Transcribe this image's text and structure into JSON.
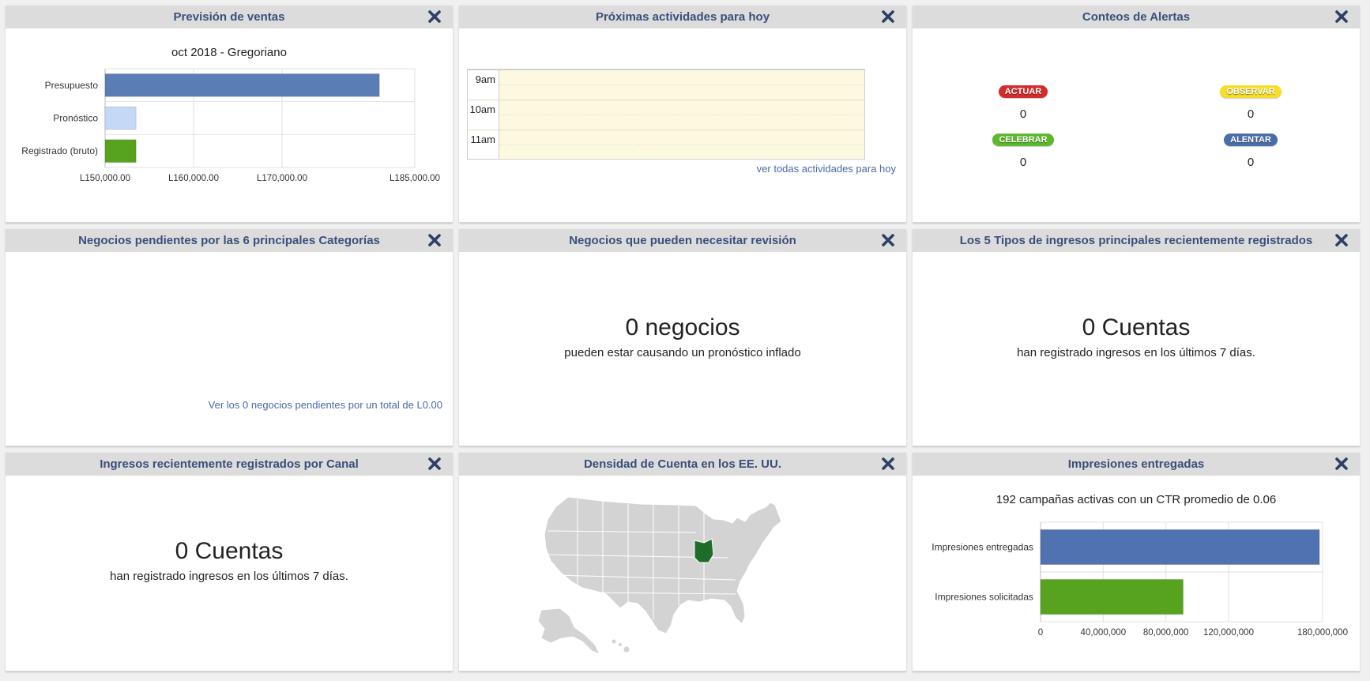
{
  "dashlets": {
    "sales_forecast": {
      "title": "Previsión de ventas"
    },
    "activities": {
      "title": "Próximas actividades para hoy",
      "hours": [
        "9am",
        "10am",
        "11am"
      ],
      "view_all": "ver todas actividades para hoy"
    },
    "alerts": {
      "title": "Conteos de Alertas",
      "items": [
        {
          "label": "ACTUAR",
          "count": "0",
          "color": "#d42c2c"
        },
        {
          "label": "OBSERVAR",
          "count": "0",
          "color": "#f5dd2a"
        },
        {
          "label": "CELEBRAR",
          "count": "0",
          "color": "#5cb82c"
        },
        {
          "label": "ALENTAR",
          "count": "0",
          "color": "#4a6ea8"
        }
      ]
    },
    "pending_deals": {
      "title": "Negocios pendientes por las 6 principales Categorías",
      "link": "Ver los 0 negocios pendientes por un total de L0.00"
    },
    "review_deals": {
      "title": "Negocios que pueden necesitar revisión",
      "count": "0 negocios",
      "subtitle": "pueden estar causando un pronóstico inflado"
    },
    "top_revenue_types": {
      "title": "Los 5 Tipos de ingresos principales recientemente registrados",
      "count": "0 Cuentas",
      "subtitle": "han registrado ingresos en los últimos 7 días."
    },
    "revenue_by_channel": {
      "title": "Ingresos recientemente registrados por Canal",
      "count": "0 Cuentas",
      "subtitle": "han registrado ingresos en los últimos 7 días."
    },
    "account_density": {
      "title": "Densidad de Cuenta en los EE. UU.",
      "highlight_color": "#1f6b2a",
      "base_color": "#d3d3d3"
    },
    "impressions": {
      "title": "Impresiones entregadas"
    }
  },
  "chart_data": [
    {
      "type": "bar",
      "orientation": "horizontal",
      "title": "oct 2018 - Gregoriano",
      "categories": [
        "Presupuesto",
        "Pronóstico",
        "Registrado (bruto)"
      ],
      "values": [
        181000,
        153500,
        153500
      ],
      "colors": [
        "#5b7db5",
        "#c5d8f6",
        "#57a21f"
      ],
      "xlim": [
        150000,
        185000
      ],
      "xticks": [
        150000,
        160000,
        170000,
        185000
      ],
      "xtick_labels": [
        "L150,000.00",
        "L160,000.00",
        "L170,000.00",
        "L185,000.00"
      ],
      "grid": true
    },
    {
      "type": "bar",
      "orientation": "horizontal",
      "title": "192 campañas activas con un CTR promedio de 0.06",
      "categories": [
        "Impresiones entregadas",
        "Impresiones solicitadas"
      ],
      "values": [
        178000000,
        91000000
      ],
      "colors": [
        "#5072b0",
        "#57a21f"
      ],
      "xlim": [
        0,
        180000000
      ],
      "xticks": [
        0,
        40000000,
        80000000,
        120000000,
        180000000
      ],
      "xtick_labels": [
        "0",
        "40,000,000",
        "80,000,000",
        "120,000,000",
        "180,000,000"
      ],
      "grid": true
    }
  ]
}
